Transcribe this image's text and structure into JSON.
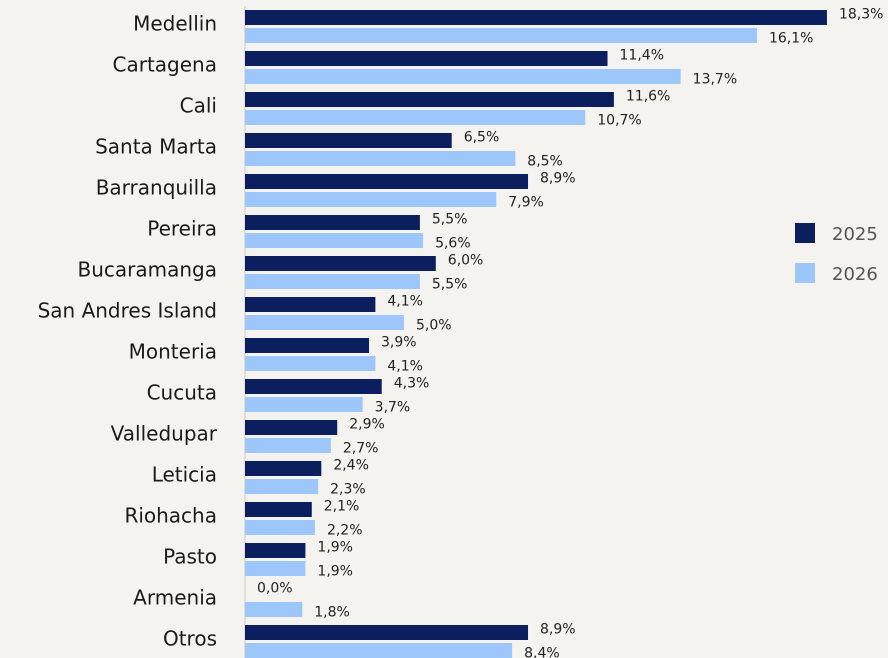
{
  "chart_data": {
    "type": "bar",
    "orientation": "horizontal",
    "categories": [
      "Medellin",
      "Cartagena",
      "Cali",
      "Santa Marta",
      "Barranquilla",
      "Pereira",
      "Bucaramanga",
      "San Andres Island",
      "Monteria",
      "Cucuta",
      "Valledupar",
      "Leticia",
      "Riohacha",
      "Pasto",
      "Armenia",
      "Otros"
    ],
    "series": [
      {
        "name": "2025",
        "color": "#0b1f5e",
        "values": [
          18.3,
          11.4,
          11.6,
          6.5,
          8.9,
          5.5,
          6.0,
          4.1,
          3.9,
          4.3,
          2.9,
          2.4,
          2.1,
          1.9,
          0.0,
          8.9
        ],
        "value_labels": [
          "18,3%",
          "11,4%",
          "11,6%",
          "6,5%",
          "8,9%",
          "5,5%",
          "6,0%",
          "4,1%",
          "3,9%",
          "4,3%",
          "2,9%",
          "2,4%",
          "2,1%",
          "1,9%",
          "0,0%",
          "8,9%"
        ]
      },
      {
        "name": "2026",
        "color": "#9dc6fa",
        "values": [
          16.1,
          13.7,
          10.7,
          8.5,
          7.9,
          5.6,
          5.5,
          5.0,
          4.1,
          3.7,
          2.7,
          2.3,
          2.2,
          1.9,
          1.8,
          8.4
        ],
        "value_labels": [
          "16,1%",
          "13,7%",
          "10,7%",
          "8,5%",
          "7,9%",
          "5,6%",
          "5,5%",
          "5,0%",
          "4,1%",
          "3,7%",
          "2,7%",
          "2,3%",
          "2,2%",
          "1,9%",
          "1,8%",
          "8,4%"
        ]
      }
    ],
    "legend": "right"
  }
}
